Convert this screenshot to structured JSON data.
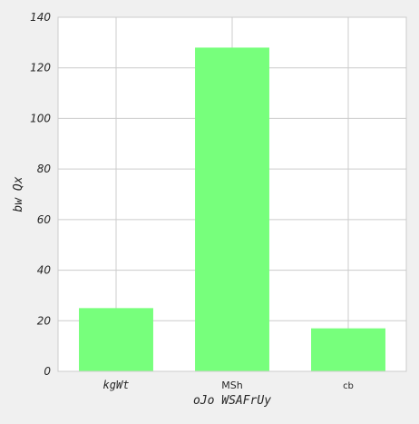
{
  "chart_data": {
    "type": "bar",
    "title": "",
    "xlabel": "oJo WSAFrUy",
    "ylabel": "bw Qx",
    "categories": [
      "kgWt",
      "MSh",
      "cb"
    ],
    "values": [
      25,
      128,
      17
    ],
    "ylim": [
      0,
      140
    ],
    "yticks": [
      0,
      20,
      40,
      60,
      80,
      100,
      120,
      140
    ],
    "grid": true,
    "bar_color": "#77ff7c",
    "grid_color": "#cccccc",
    "plot_background": "#ffffff",
    "figure_background": "#f0f0f0"
  }
}
